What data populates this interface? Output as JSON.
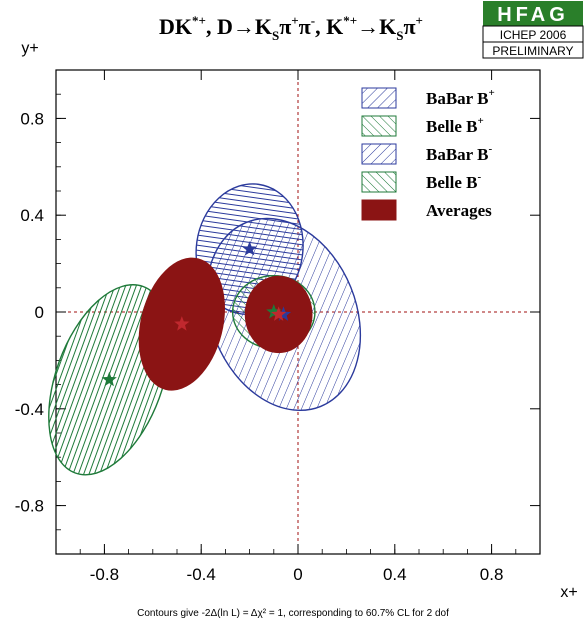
{
  "header": {
    "title_parts": [
      "DK",
      "*+",
      ", D→K",
      "S",
      "π",
      "+",
      "π",
      "-",
      ", K",
      "*+",
      "→K",
      "S",
      "π",
      "+"
    ],
    "logo_text": "HFAG",
    "conference": "ICHEP 2006",
    "status": "PRELIMINARY"
  },
  "footer_note": "Contours give -2Δ(ln L) = Δχ² = 1, corresponding to 60.7% CL for 2 dof",
  "chart_data": {
    "type": "scatter",
    "xlabel": "x+",
    "ylabel": "y+",
    "xlim": [
      -1.0,
      1.0
    ],
    "ylim": [
      -1.0,
      1.0
    ],
    "xticks": [
      -0.8,
      -0.4,
      0,
      0.4,
      0.8
    ],
    "xtick_labels": [
      "-0.8",
      "-0.4",
      "0",
      "0.4",
      "0.8"
    ],
    "yticks": [
      -0.8,
      -0.4,
      0,
      0.4,
      0.8
    ],
    "ytick_labels": [
      "-0.8",
      "-0.4",
      "0",
      "0.4",
      "0.8"
    ],
    "reference_lines": {
      "x": 0,
      "y": 0,
      "color": "#a01010"
    },
    "grid": false,
    "legend_position": "top-right",
    "legend": [
      {
        "label": "BaBar B",
        "sup": "+",
        "color": "#2b3a9c",
        "hatch": "diag-down"
      },
      {
        "label": "Belle B",
        "sup": "+",
        "color": "#1f7a3a",
        "hatch": "diag-up"
      },
      {
        "label": "BaBar B",
        "sup": "-",
        "color": "#2b3a9c",
        "hatch": "diag-down"
      },
      {
        "label": "Belle B",
        "sup": "-",
        "color": "#1f7a3a",
        "hatch": "diag-up"
      },
      {
        "label": "Averages",
        "sup": "",
        "color": "#8b1414",
        "hatch": "solid"
      }
    ],
    "series": [
      {
        "name": "Belle B+",
        "center": [
          -0.78,
          -0.28
        ],
        "color": "#1f7a3a",
        "hatch": "vertical",
        "contour": {
          "rx": 0.22,
          "ry": 0.41,
          "angle": -20
        }
      },
      {
        "name": "BaBar B+",
        "center": [
          -0.2,
          0.26
        ],
        "color": "#2b3a9c",
        "hatch": "horizontal",
        "contour": {
          "rx": 0.22,
          "ry": 0.27,
          "angle": -8
        }
      },
      {
        "name": "BaBar B-",
        "center": [
          -0.06,
          -0.01
        ],
        "color": "#2b3a9c",
        "hatch": "diag-down",
        "contour": {
          "rx": 0.3,
          "ry": 0.41,
          "angle": 22
        }
      },
      {
        "name": "Belle B-",
        "center": [
          -0.1,
          0.0
        ],
        "color": "#1f7a3a",
        "hatch": "diag-up",
        "contour": {
          "rx": 0.17,
          "ry": 0.15,
          "angle": 0
        }
      },
      {
        "name": "Average B+",
        "center": [
          -0.48,
          -0.05
        ],
        "color": "#8b1414",
        "hatch": "solid",
        "contour": {
          "rx": 0.17,
          "ry": 0.28,
          "angle": -14
        }
      },
      {
        "name": "Average B-",
        "center": [
          -0.08,
          -0.01
        ],
        "color": "#8b1414",
        "hatch": "solid",
        "contour": {
          "rx": 0.14,
          "ry": 0.16,
          "angle": 0
        }
      }
    ]
  }
}
